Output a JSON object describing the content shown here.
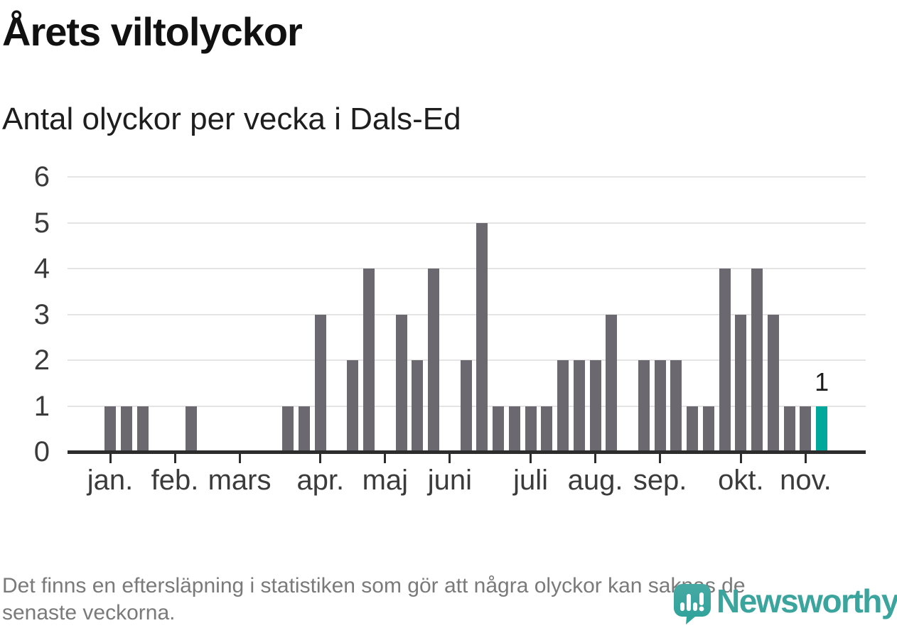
{
  "header": {
    "title": "Årets viltolyckor",
    "subtitle": "Antal olyckor per vecka i Dals-Ed"
  },
  "chart_data": {
    "type": "bar",
    "title": "Årets viltolyckor",
    "subtitle": "Antal olyckor per vecka i Dals-Ed",
    "x_unit": "week",
    "values": [
      1,
      1,
      1,
      0,
      0,
      1,
      0,
      0,
      0,
      0,
      0,
      1,
      1,
      3,
      0,
      2,
      4,
      0,
      3,
      2,
      4,
      0,
      2,
      5,
      1,
      1,
      1,
      1,
      2,
      2,
      2,
      3,
      0,
      2,
      2,
      2,
      1,
      1,
      4,
      3,
      4,
      3,
      1,
      1,
      1
    ],
    "month_ticks": [
      {
        "label": "jan.",
        "week_index": 0
      },
      {
        "label": "feb.",
        "week_index": 4
      },
      {
        "label": "mars",
        "week_index": 8
      },
      {
        "label": "apr.",
        "week_index": 13
      },
      {
        "label": "maj",
        "week_index": 17
      },
      {
        "label": "juni",
        "week_index": 21
      },
      {
        "label": "juli",
        "week_index": 26
      },
      {
        "label": "aug.",
        "week_index": 30
      },
      {
        "label": "sep.",
        "week_index": 34
      },
      {
        "label": "okt.",
        "week_index": 39
      },
      {
        "label": "nov.",
        "week_index": 43
      }
    ],
    "y_ticks": [
      0,
      1,
      2,
      3,
      4,
      5,
      6
    ],
    "ylim": [
      0,
      6
    ],
    "grid": "horizontal",
    "legend": "none",
    "bar_color": "#6c686f",
    "highlight_color": "#00a79b",
    "highlight_index": 44,
    "highlight_value_label": "1"
  },
  "footer": {
    "lines": [
      "Det finns en eftersläpning i statistiken som gör att några olyckor kan saknas de",
      "senaste veckorna."
    ],
    "logo_text": "Newsworthy",
    "logo_color": "#3ba49d"
  }
}
